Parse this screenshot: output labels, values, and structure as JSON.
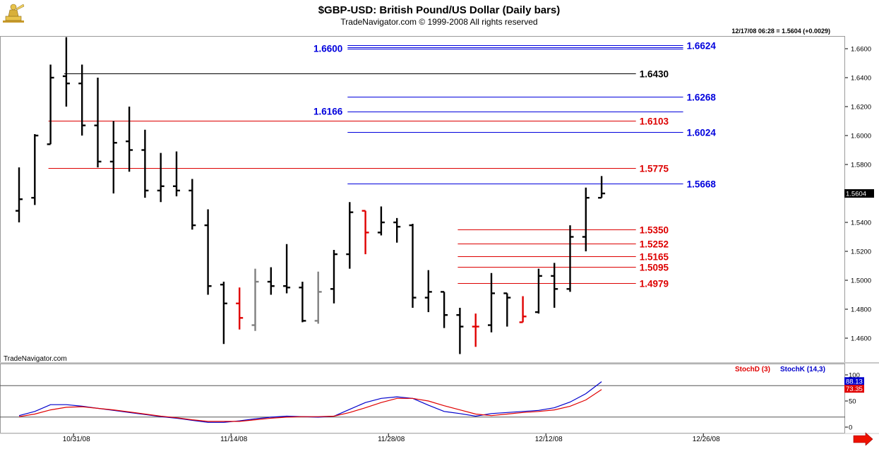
{
  "header": {
    "title": "$GBP-USD:  British Pound/US Dollar  (Daily bars)",
    "subtitle": "TradeNavigator.com © 1999-2008 All rights reserved",
    "status": "12/17/08 06:28 = 1.5604 (+0.0029)",
    "watermark": "TradeNavigator.com"
  },
  "chart_data": [
    {
      "type": "ohlc",
      "price_axis": {
        "ticks": [
          1.46,
          1.48,
          1.5,
          1.52,
          1.54,
          1.56,
          1.58,
          1.6,
          1.62,
          1.64,
          1.66
        ],
        "labels": [
          "1.4600",
          "1.4800",
          "1.5000",
          "1.5200",
          "1.5400",
          "1.5600",
          "1.5800",
          "1.6000",
          "1.6200",
          "1.6400",
          "1.6600"
        ],
        "ylim": [
          1.445,
          1.672
        ]
      },
      "last_price_label": "1.5604",
      "date_labels": [
        {
          "label": "10/31/08",
          "bar": 4
        },
        {
          "label": "11/14/08",
          "bar": 14
        },
        {
          "label": "11/28/08",
          "bar": 24
        },
        {
          "label": "12/12/08",
          "bar": 34
        },
        {
          "label": "12/26/08",
          "bar": 44
        }
      ],
      "bars": [
        {
          "o": 1.548,
          "h": 1.578,
          "l": 1.54,
          "c": 1.556,
          "color": "#000000"
        },
        {
          "o": 1.557,
          "h": 1.601,
          "l": 1.552,
          "c": 1.6,
          "color": "#000000"
        },
        {
          "o": 1.594,
          "h": 1.649,
          "l": 1.594,
          "c": 1.64,
          "color": "#000000"
        },
        {
          "o": 1.641,
          "h": 1.668,
          "l": 1.62,
          "c": 1.636,
          "color": "#000000"
        },
        {
          "o": 1.636,
          "h": 1.649,
          "l": 1.6,
          "c": 1.607,
          "color": "#000000"
        },
        {
          "o": 1.607,
          "h": 1.64,
          "l": 1.578,
          "c": 1.582,
          "color": "#000000"
        },
        {
          "o": 1.582,
          "h": 1.61,
          "l": 1.56,
          "c": 1.595,
          "color": "#000000"
        },
        {
          "o": 1.596,
          "h": 1.62,
          "l": 1.575,
          "c": 1.59,
          "color": "#000000"
        },
        {
          "o": 1.59,
          "h": 1.604,
          "l": 1.557,
          "c": 1.562,
          "color": "#000000"
        },
        {
          "o": 1.562,
          "h": 1.588,
          "l": 1.554,
          "c": 1.565,
          "color": "#000000"
        },
        {
          "o": 1.565,
          "h": 1.589,
          "l": 1.558,
          "c": 1.562,
          "color": "#000000"
        },
        {
          "o": 1.562,
          "h": 1.57,
          "l": 1.535,
          "c": 1.538,
          "color": "#000000"
        },
        {
          "o": 1.538,
          "h": 1.549,
          "l": 1.49,
          "c": 1.496,
          "color": "#000000"
        },
        {
          "o": 1.497,
          "h": 1.499,
          "l": 1.456,
          "c": 1.484,
          "color": "#000000"
        },
        {
          "o": 1.484,
          "h": 1.495,
          "l": 1.466,
          "c": 1.474,
          "color": "#e00000"
        },
        {
          "o": 1.469,
          "h": 1.508,
          "l": 1.465,
          "c": 1.499,
          "color": "#808080"
        },
        {
          "o": 1.499,
          "h": 1.509,
          "l": 1.49,
          "c": 1.496,
          "color": "#000000"
        },
        {
          "o": 1.496,
          "h": 1.525,
          "l": 1.491,
          "c": 1.495,
          "color": "#000000"
        },
        {
          "o": 1.495,
          "h": 1.499,
          "l": 1.471,
          "c": 1.472,
          "color": "#000000"
        },
        {
          "o": 1.472,
          "h": 1.506,
          "l": 1.47,
          "c": 1.492,
          "color": "#808080"
        },
        {
          "o": 1.494,
          "h": 1.521,
          "l": 1.484,
          "c": 1.518,
          "color": "#000000"
        },
        {
          "o": 1.518,
          "h": 1.554,
          "l": 1.508,
          "c": 1.547,
          "color": "#000000"
        },
        {
          "o": 1.548,
          "h": 1.548,
          "l": 1.518,
          "c": 1.533,
          "color": "#e00000"
        },
        {
          "o": 1.533,
          "h": 1.551,
          "l": 1.531,
          "c": 1.54,
          "color": "#000000"
        },
        {
          "o": 1.54,
          "h": 1.543,
          "l": 1.526,
          "c": 1.537,
          "color": "#000000"
        },
        {
          "o": 1.538,
          "h": 1.539,
          "l": 1.481,
          "c": 1.488,
          "color": "#000000"
        },
        {
          "o": 1.488,
          "h": 1.507,
          "l": 1.478,
          "c": 1.492,
          "color": "#000000"
        },
        {
          "o": 1.492,
          "h": 1.492,
          "l": 1.467,
          "c": 1.476,
          "color": "#000000"
        },
        {
          "o": 1.476,
          "h": 1.481,
          "l": 1.449,
          "c": 1.468,
          "color": "#000000"
        },
        {
          "o": 1.468,
          "h": 1.477,
          "l": 1.454,
          "c": 1.468,
          "color": "#e00000"
        },
        {
          "o": 1.469,
          "h": 1.505,
          "l": 1.464,
          "c": 1.491,
          "color": "#000000"
        },
        {
          "o": 1.491,
          "h": 1.491,
          "l": 1.468,
          "c": 1.488,
          "color": "#000000"
        },
        {
          "o": 1.471,
          "h": 1.489,
          "l": 1.471,
          "c": 1.475,
          "color": "#e00000"
        },
        {
          "o": 1.478,
          "h": 1.508,
          "l": 1.477,
          "c": 1.503,
          "color": "#000000"
        },
        {
          "o": 1.503,
          "h": 1.512,
          "l": 1.481,
          "c": 1.494,
          "color": "#000000"
        },
        {
          "o": 1.494,
          "h": 1.538,
          "l": 1.492,
          "c": 1.53,
          "color": "#000000"
        },
        {
          "o": 1.53,
          "h": 1.564,
          "l": 1.52,
          "c": 1.557,
          "color": "#000000"
        },
        {
          "o": 1.557,
          "h": 1.572,
          "l": 1.557,
          "c": 1.56,
          "color": "#000000"
        }
      ],
      "levels": [
        {
          "price": 1.6624,
          "label": "1.6624",
          "color": "#0000dd",
          "double": true,
          "start_bar": 21,
          "end_bar": 42
        },
        {
          "price": 1.66,
          "label": "1.6600",
          "color": "#0000dd",
          "label_side": "left",
          "start_bar": 21,
          "end_bar": 42
        },
        {
          "price": 1.643,
          "label": "1.6430",
          "color": "#000000",
          "start_bar": 3,
          "end_bar": 39
        },
        {
          "price": 1.6268,
          "label": "1.6268",
          "color": "#0000dd",
          "start_bar": 21,
          "end_bar": 42
        },
        {
          "price": 1.6166,
          "label": "1.6166",
          "color": "#0000dd",
          "label_side": "left",
          "start_bar": 21,
          "end_bar": 42
        },
        {
          "price": 1.6103,
          "label": "1.6103",
          "color": "#dd0000",
          "start_bar": 2,
          "end_bar": 39
        },
        {
          "price": 1.6024,
          "label": "1.6024",
          "color": "#0000dd",
          "start_bar": 21,
          "end_bar": 42
        },
        {
          "price": 1.5775,
          "label": "1.5775",
          "color": "#dd0000",
          "start_bar": 2,
          "end_bar": 39
        },
        {
          "price": 1.5668,
          "label": "1.5668",
          "color": "#0000dd",
          "start_bar": 21,
          "end_bar": 42
        },
        {
          "price": 1.535,
          "label": "1.5350",
          "color": "#dd0000",
          "start_bar": 28,
          "end_bar": 39
        },
        {
          "price": 1.5252,
          "label": "1.5252",
          "color": "#dd0000",
          "start_bar": 28,
          "end_bar": 39
        },
        {
          "price": 1.5165,
          "label": "1.5165",
          "color": "#dd0000",
          "start_bar": 28,
          "end_bar": 39
        },
        {
          "price": 1.5095,
          "label": "1.5095",
          "color": "#dd0000",
          "start_bar": 28,
          "end_bar": 39
        },
        {
          "price": 1.4979,
          "label": "1.4979",
          "color": "#dd0000",
          "start_bar": 28,
          "end_bar": 39
        }
      ]
    },
    {
      "type": "line",
      "legend": [
        {
          "name": "StochD (3)",
          "color": "#e00000"
        },
        {
          "name": "StochK (14,3)",
          "color": "#0000cc"
        }
      ],
      "ylim": [
        0,
        100
      ],
      "axis_labels": [
        {
          "value": 100,
          "label": "100"
        },
        {
          "value": 50,
          "label": "50"
        },
        {
          "value": 0,
          "label": "0"
        }
      ],
      "ref_levels": [
        80,
        20
      ],
      "last_values": [
        {
          "name": "StochK (14,3)",
          "label": "88.13",
          "value": 88.13
        },
        {
          "name": "StochD (3)",
          "label": "73.35",
          "value": 73.35
        }
      ],
      "series": [
        {
          "name": "StochK (14,3)",
          "color": "#0000cc",
          "values": [
            22,
            30,
            43,
            43,
            40,
            36,
            32,
            28,
            24,
            20,
            17,
            13,
            9,
            9,
            12,
            16,
            19,
            21,
            20,
            19,
            21,
            34,
            47,
            55,
            58,
            55,
            42,
            30,
            26,
            21,
            26,
            28,
            30,
            32,
            37,
            48,
            64,
            87
          ]
        },
        {
          "name": "StochD (3)",
          "color": "#e00000",
          "values": [
            20,
            25,
            33,
            38,
            39,
            36,
            33,
            29,
            25,
            21,
            18,
            14,
            11,
            11,
            11,
            14,
            17,
            19,
            20,
            20,
            21,
            28,
            37,
            47,
            55,
            55,
            50,
            41,
            33,
            25,
            22,
            25,
            28,
            30,
            33,
            40,
            52,
            72
          ]
        }
      ]
    }
  ]
}
